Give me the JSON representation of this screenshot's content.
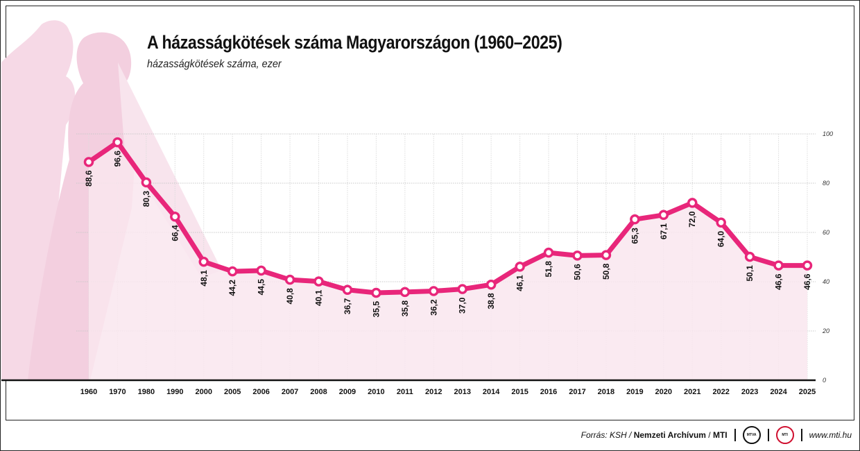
{
  "title": "A házasságkötések száma Magyarországon (1960–2025)",
  "subtitle": "házasságkötések száma, ezer",
  "footer": {
    "source_prefix": "Forrás: KSH /",
    "source_bold": "Nemzeti Archívum",
    "source_sep": "/",
    "source_mti": "MTI",
    "logo1": "MTVA",
    "logo2": "MTI",
    "website": "www.mti.hu"
  },
  "colors": {
    "line": "#e8267a",
    "area": "#f9e6ef",
    "silhouette": "#f6d9e6"
  },
  "chart_data": {
    "type": "line",
    "categories": [
      "1960",
      "1970",
      "1980",
      "1990",
      "2000",
      "2005",
      "2006",
      "2007",
      "2008",
      "2009",
      "2010",
      "2011",
      "2012",
      "2013",
      "2014",
      "2015",
      "2016",
      "2017",
      "2018",
      "2019",
      "2020",
      "2021",
      "2022",
      "2023",
      "2024",
      "2025"
    ],
    "values": [
      88.6,
      96.6,
      80.3,
      66.4,
      48.1,
      44.2,
      44.5,
      40.8,
      40.1,
      36.7,
      35.5,
      35.8,
      36.2,
      37.0,
      38.8,
      46.1,
      51.8,
      50.6,
      50.8,
      65.3,
      67.1,
      72.0,
      64.0,
      50.1,
      46.6,
      46.6
    ],
    "labels": [
      "88,6",
      "96,6",
      "80,3",
      "66,4",
      "48,1",
      "44,2",
      "44,5",
      "40,8",
      "40,1",
      "36,7",
      "35,5",
      "35,8",
      "36,2",
      "37,0",
      "38,8",
      "46,1",
      "51,8",
      "50,6",
      "50,8",
      "65,3",
      "67,1",
      "72,0",
      "64,0",
      "50,1",
      "46,6",
      "46,6"
    ],
    "ylim": [
      0,
      100
    ],
    "yticks": [
      "0",
      "20",
      "40",
      "60",
      "80",
      "100"
    ],
    "grid": true,
    "area_fill": true
  }
}
